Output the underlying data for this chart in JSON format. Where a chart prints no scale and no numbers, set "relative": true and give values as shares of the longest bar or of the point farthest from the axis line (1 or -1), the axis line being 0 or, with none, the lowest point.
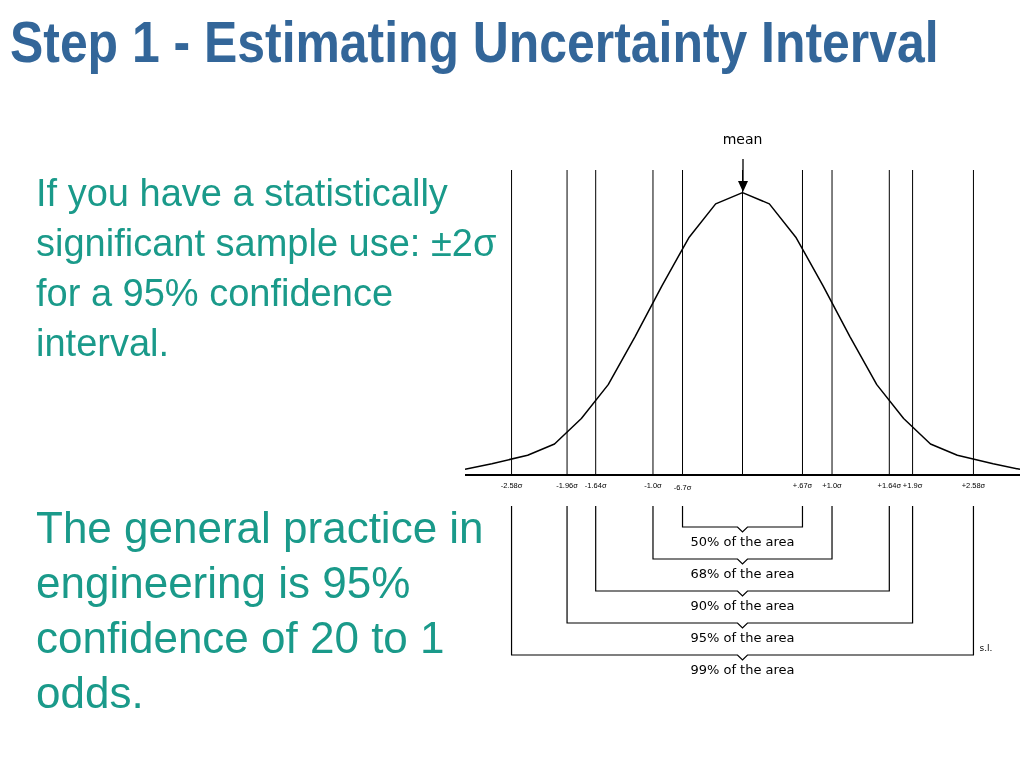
{
  "chart_data": {
    "type": "line",
    "title": "Step 1 - Estimating Uncertainty Interval",
    "relative": true,
    "x": [
      -3.1,
      -2.8,
      -2.4,
      -2.1,
      -1.8,
      -1.5,
      -1.2,
      -0.9,
      -0.6,
      -0.3,
      0,
      0.3,
      0.6,
      0.9,
      1.2,
      1.5,
      1.8,
      2.1,
      2.4,
      2.8,
      3.1
    ],
    "series": [
      {
        "color": "#000000",
        "values": [
          0.02,
          0.04,
          0.07,
          0.11,
          0.2,
          0.32,
          0.49,
          0.67,
          0.84,
          0.96,
          1,
          0.96,
          0.84,
          0.67,
          0.49,
          0.32,
          0.2,
          0.11,
          0.07,
          0.04,
          0.02
        ]
      }
    ],
    "xlim": [
      -3.1,
      3.1
    ],
    "xticks": [
      {
        "value": -2.58,
        "label": "-2.58σ"
      },
      {
        "value": -1.96,
        "label": "-1.96σ"
      },
      {
        "value": -1.64,
        "label": "-1.64σ"
      },
      {
        "value": -1.0,
        "label": "-1.0σ"
      },
      {
        "value": -0.67,
        "label": null
      },
      {
        "value": 0.67,
        "label": "+.67σ"
      },
      {
        "value": 1.0,
        "label": "+1.0σ"
      },
      {
        "value": 1.64,
        "label": "+1.64σ"
      },
      {
        "value": 1.9,
        "label": "+1.9σ"
      },
      {
        "value": 2.58,
        "label": "+2.58σ"
      }
    ],
    "ref_lines": [
      {
        "axis": "x",
        "value": 0,
        "label": "mean"
      },
      {
        "axis": "x",
        "value": -2.58
      },
      {
        "axis": "x",
        "value": -1.96
      },
      {
        "axis": "x",
        "value": -1.64
      },
      {
        "axis": "x",
        "value": -1.0
      },
      {
        "axis": "x",
        "value": -0.67,
        "label": "-6.7σ"
      },
      {
        "axis": "x",
        "value": 0.67
      },
      {
        "axis": "x",
        "value": 1.0
      },
      {
        "axis": "x",
        "value": 1.64
      },
      {
        "axis": "x",
        "value": 1.9
      },
      {
        "axis": "x",
        "value": 2.58
      }
    ],
    "annotations": [
      "If you have a statistically significant sample use: ±2σ for a 95% confidence interval.",
      "The general practice in engineering is 95% confidence of 20 to 1 odds.",
      "50% of the area",
      "68% of the area",
      "90% of the area",
      "95% of the area",
      "99% of the area",
      "s.l."
    ],
    "grid": false,
    "legend": false
  }
}
